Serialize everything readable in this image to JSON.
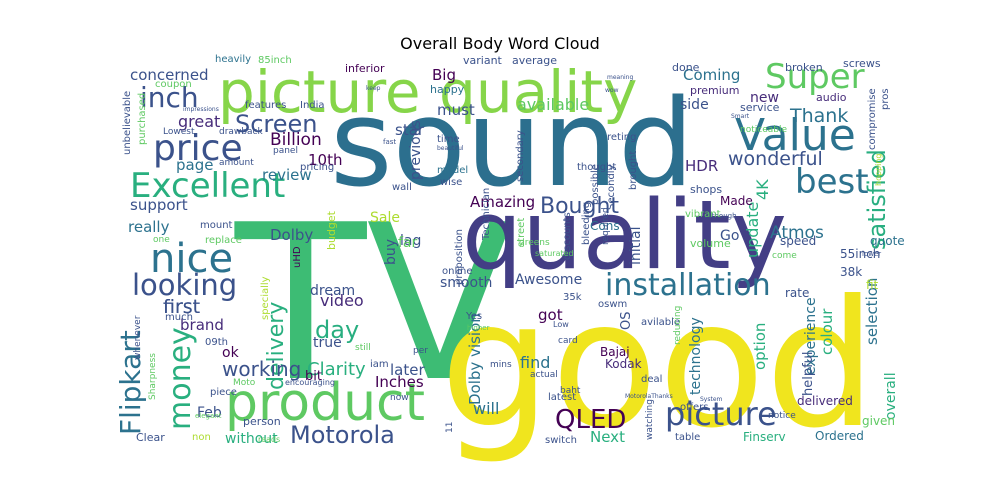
{
  "title": "Overall Body Word Cloud",
  "palette": [
    "#440154",
    "#472c7a",
    "#3b528b",
    "#2c728e",
    "#21918c",
    "#28ae80",
    "#5ec962",
    "#addc30",
    "#fde725"
  ],
  "words": [
    {
      "text": "TV",
      "color": "#3dbc74"
    },
    {
      "text": "good",
      "color": "#f0e51e"
    },
    {
      "text": "sound",
      "color": "#2c6f8e"
    },
    {
      "text": "quality",
      "color": "#433e85"
    },
    {
      "text": "picture quality",
      "color": "#86d549"
    },
    {
      "text": "product",
      "color": "#5ec962"
    },
    {
      "text": "Excellent",
      "color": "#29af7f"
    },
    {
      "text": "nice",
      "color": "#2c728e"
    },
    {
      "text": "price",
      "color": "#3b528b"
    },
    {
      "text": "Value",
      "color": "#2c728e"
    },
    {
      "text": "Super",
      "color": "#5ec962"
    },
    {
      "text": "best",
      "color": "#2c728e"
    },
    {
      "text": "installation",
      "color": "#2c728e"
    },
    {
      "text": "picture",
      "color": "#3b528b"
    },
    {
      "text": "looking",
      "color": "#3b528b"
    },
    {
      "text": "money",
      "color": "#29af7f"
    },
    {
      "text": "Flipkart",
      "color": "#2c728e"
    },
    {
      "text": "QLED",
      "color": "#440154"
    },
    {
      "text": "Motorola",
      "color": "#3b528b"
    },
    {
      "text": "delivery",
      "color": "#29af7f"
    },
    {
      "text": "inch",
      "color": "#3b528b"
    },
    {
      "text": "satisfied",
      "color": "#28ae80"
    },
    {
      "text": "Screen",
      "color": "#3b528b"
    },
    {
      "text": "day",
      "color": "#28ae80"
    },
    {
      "text": "Bought",
      "color": "#3b528b"
    },
    {
      "text": "working",
      "color": "#3b528b"
    },
    {
      "text": "wonderful",
      "color": "#3b528b"
    },
    {
      "text": "great",
      "color": "#472c7a"
    },
    {
      "text": "Amazing",
      "color": "#440154"
    },
    {
      "text": "Thank",
      "color": "#2c728e"
    },
    {
      "text": "Billion",
      "color": "#440154"
    },
    {
      "text": "10th",
      "color": "#440154"
    },
    {
      "text": "review",
      "color": "#2c728e"
    },
    {
      "text": "HDR",
      "color": "#472c7a"
    },
    {
      "text": "4K",
      "color": "#29af7f"
    },
    {
      "text": "Dolby",
      "color": "#3b528b"
    },
    {
      "text": "Atmos",
      "color": "#2c728e"
    },
    {
      "text": "first",
      "color": "#3b528b"
    },
    {
      "text": "Clarity",
      "color": "#29af7f"
    },
    {
      "text": "brand",
      "color": "#472c7a"
    },
    {
      "text": "video",
      "color": "#472c7a"
    },
    {
      "text": "update",
      "color": "#29af7f"
    },
    {
      "text": "selection",
      "color": "#2c728e"
    },
    {
      "text": "colour",
      "color": "#29af7f"
    },
    {
      "text": "Coming",
      "color": "#2c728e"
    },
    {
      "text": "Big",
      "color": "#440154"
    },
    {
      "text": "concerned",
      "color": "#3b528b"
    },
    {
      "text": "really",
      "color": "#2c728e"
    },
    {
      "text": "page",
      "color": "#2c728e"
    },
    {
      "text": "support",
      "color": "#3b528b"
    },
    {
      "text": "Inches",
      "color": "#440154"
    },
    {
      "text": "later",
      "color": "#3b528b"
    },
    {
      "text": "will",
      "color": "#2c728e"
    },
    {
      "text": "Next",
      "color": "#29af7f"
    },
    {
      "text": "without",
      "color": "#29af7f"
    },
    {
      "text": "Awesome",
      "color": "#3b528b"
    },
    {
      "text": "smooth",
      "color": "#3b528b"
    },
    {
      "text": "first",
      "color": "#3b528b"
    },
    {
      "text": "option",
      "color": "#29af7f"
    },
    {
      "text": "overall",
      "color": "#29af7f"
    },
    {
      "text": "experience",
      "color": "#2c728e"
    },
    {
      "text": "technology",
      "color": "#2c728e"
    },
    {
      "text": "available",
      "color": "#5ec962"
    },
    {
      "text": "must",
      "color": "#3b528b"
    },
    {
      "text": "star",
      "color": "#3b528b"
    },
    {
      "text": "side",
      "color": "#3b528b"
    },
    {
      "text": "new",
      "color": "#472c7a"
    },
    {
      "text": "lag",
      "color": "#3b528b"
    },
    {
      "text": "Sale",
      "color": "#addc30"
    },
    {
      "text": "Feb",
      "color": "#3b528b"
    },
    {
      "text": "ok",
      "color": "#440154"
    },
    {
      "text": "bit",
      "color": "#440154"
    },
    {
      "text": "find",
      "color": "#2c728e"
    },
    {
      "text": "got",
      "color": "#440154"
    },
    {
      "text": "true",
      "color": "#3b528b"
    },
    {
      "text": "dream",
      "color": "#3b528b"
    },
    {
      "text": "previous",
      "color": "#3b528b"
    },
    {
      "text": "Dolby vision",
      "color": "#2c728e"
    },
    {
      "text": "buy",
      "color": "#3b528b"
    },
    {
      "text": "far",
      "color": "#5ec962"
    },
    {
      "text": "initial",
      "color": "#3b528b"
    },
    {
      "text": "OS",
      "color": "#3b528b"
    },
    {
      "text": "Go",
      "color": "#3b528b"
    },
    {
      "text": "Made",
      "color": "#440154"
    },
    {
      "text": "Cons",
      "color": "#2c728e"
    },
    {
      "text": "Bajaj",
      "color": "#440154"
    },
    {
      "text": "Kodak",
      "color": "#472c7a"
    },
    {
      "text": "Finserv",
      "color": "#29af7f"
    },
    {
      "text": "Ordered",
      "color": "#2c728e"
    },
    {
      "text": "delivered",
      "color": "#472c7a"
    },
    {
      "text": "given",
      "color": "#5ec962"
    },
    {
      "text": "helpful",
      "color": "#3b528b"
    },
    {
      "text": "quote",
      "color": "#2c728e"
    },
    {
      "text": "speed",
      "color": "#3b528b"
    },
    {
      "text": "55inch",
      "color": "#3b528b"
    },
    {
      "text": "38k",
      "color": "#3b528b"
    },
    {
      "text": "rate",
      "color": "#3b528b"
    },
    {
      "text": "fit",
      "color": "#addc30"
    },
    {
      "text": "audio",
      "color": "#472c7a"
    },
    {
      "text": "broken",
      "color": "#3b528b"
    },
    {
      "text": "screws",
      "color": "#3b528b"
    },
    {
      "text": "premium",
      "color": "#472c7a"
    },
    {
      "text": "service",
      "color": "#3b528b"
    },
    {
      "text": "noticeable",
      "color": "#5ec962"
    },
    {
      "text": "shops",
      "color": "#3b528b"
    },
    {
      "text": "hopping",
      "color": "#addc30"
    },
    {
      "text": "compromise",
      "color": "#3b528b"
    },
    {
      "text": "pros",
      "color": "#3b528b"
    },
    {
      "text": "volume",
      "color": "#5ec962"
    },
    {
      "text": "come",
      "color": "#5ec962"
    },
    {
      "text": "lower",
      "color": "#3b528b"
    },
    {
      "text": "done",
      "color": "#3b528b"
    },
    {
      "text": "average",
      "color": "#3b528b"
    },
    {
      "text": "variant",
      "color": "#3b528b"
    },
    {
      "text": "happy",
      "color": "#2c728e"
    },
    {
      "text": "heavily",
      "color": "#2c728e"
    },
    {
      "text": "85inch",
      "color": "#5ec962"
    },
    {
      "text": "inferior",
      "color": "#440154"
    },
    {
      "text": "coupon",
      "color": "#5ec962"
    },
    {
      "text": "features",
      "color": "#3b528b"
    },
    {
      "text": "India",
      "color": "#3b528b"
    },
    {
      "text": "unbelievable",
      "color": "#3b528b"
    },
    {
      "text": "purchased",
      "color": "#5ec962"
    },
    {
      "text": "Lowest",
      "color": "#3b528b"
    },
    {
      "text": "drawback",
      "color": "#3b528b"
    },
    {
      "text": "amount",
      "color": "#3b528b"
    },
    {
      "text": "panel",
      "color": "#3b528b"
    },
    {
      "text": "pricing",
      "color": "#3b528b"
    },
    {
      "text": "wall",
      "color": "#3b528b"
    },
    {
      "text": "budget",
      "color": "#addc30"
    },
    {
      "text": "mount",
      "color": "#3b528b"
    },
    {
      "text": "replace",
      "color": "#5ec962"
    },
    {
      "text": "one",
      "color": "#5ec962"
    },
    {
      "text": "uHD",
      "color": "#440154"
    },
    {
      "text": "specially",
      "color": "#addc30"
    },
    {
      "text": "much",
      "color": "#3b528b"
    },
    {
      "text": "09th",
      "color": "#3b528b"
    },
    {
      "text": "whenever",
      "color": "#3b528b"
    },
    {
      "text": "Sharpness",
      "color": "#5ec962"
    },
    {
      "text": "piece",
      "color": "#3b528b"
    },
    {
      "text": "Moto",
      "color": "#5ec962"
    },
    {
      "text": "person",
      "color": "#3b528b"
    },
    {
      "text": "encouraging",
      "color": "#3b528b"
    },
    {
      "text": "elegant",
      "color": "#5ec962"
    },
    {
      "text": "Clear",
      "color": "#3b528b"
    },
    {
      "text": "non",
      "color": "#addc30"
    },
    {
      "text": "reads",
      "color": "#5ec962"
    },
    {
      "text": "iam",
      "color": "#3b528b"
    },
    {
      "text": "now",
      "color": "#3b528b"
    },
    {
      "text": "still",
      "color": "#5ec962"
    },
    {
      "text": "per",
      "color": "#3b528b"
    },
    {
      "text": "online",
      "color": "#3b528b"
    },
    {
      "text": "proposition",
      "color": "#3b528b"
    },
    {
      "text": "wise",
      "color": "#3b528b"
    },
    {
      "text": "model",
      "color": "#2c728e"
    },
    {
      "text": "time",
      "color": "#3b528b"
    },
    {
      "text": "fast",
      "color": "#3b528b"
    },
    {
      "text": "beautiful",
      "color": "#3b528b"
    },
    {
      "text": "Technician",
      "color": "#3b528b"
    },
    {
      "text": "secondary",
      "color": "#3b528b"
    },
    {
      "text": "thought",
      "color": "#3b528b"
    },
    {
      "text": "possible",
      "color": "#3b528b"
    },
    {
      "text": "Secondly",
      "color": "#3b528b"
    },
    {
      "text": "brought",
      "color": "#3b528b"
    },
    {
      "text": "reting",
      "color": "#3b528b"
    },
    {
      "text": "street",
      "color": "#5ec962"
    },
    {
      "text": "discounts",
      "color": "#3b528b"
    },
    {
      "text": "bleeding",
      "color": "#3b528b"
    },
    {
      "text": "required",
      "color": "#3b528b"
    },
    {
      "text": "Although",
      "color": "#3b528b"
    },
    {
      "text": "vibrant",
      "color": "#5ec962"
    },
    {
      "text": "greens",
      "color": "#5ec962"
    },
    {
      "text": "saturated",
      "color": "#5ec962"
    },
    {
      "text": "35k",
      "color": "#3b528b"
    },
    {
      "text": "oswm",
      "color": "#3b528b"
    },
    {
      "text": "Yes",
      "color": "#3b528b"
    },
    {
      "text": "higher",
      "color": "#5ec962"
    },
    {
      "text": "Low",
      "color": "#3b528b"
    },
    {
      "text": "deal",
      "color": "#3b528b"
    },
    {
      "text": "avilable",
      "color": "#3b528b"
    },
    {
      "text": "reducing",
      "color": "#5ec962"
    },
    {
      "text": "mins",
      "color": "#3b528b"
    },
    {
      "text": "actual",
      "color": "#3b528b"
    },
    {
      "text": "card",
      "color": "#3b528b"
    },
    {
      "text": "baht",
      "color": "#3b528b"
    },
    {
      "text": "latest",
      "color": "#3b528b"
    },
    {
      "text": "offers",
      "color": "#3b528b"
    },
    {
      "text": "watching",
      "color": "#3b528b"
    },
    {
      "text": "notice",
      "color": "#3b528b"
    },
    {
      "text": "MotorolaThanks",
      "color": "#3b528b"
    },
    {
      "text": "System",
      "color": "#3b528b"
    },
    {
      "text": "table",
      "color": "#3b528b"
    },
    {
      "text": "switch",
      "color": "#3b528b"
    },
    {
      "text": "11",
      "color": "#3b528b"
    },
    {
      "text": "keep",
      "color": "#3b528b"
    },
    {
      "text": "wow",
      "color": "#3b528b"
    },
    {
      "text": "meaning",
      "color": "#3b528b"
    },
    {
      "text": "Smart",
      "color": "#3b528b"
    },
    {
      "text": "impressions",
      "color": "#3b528b"
    }
  ]
}
